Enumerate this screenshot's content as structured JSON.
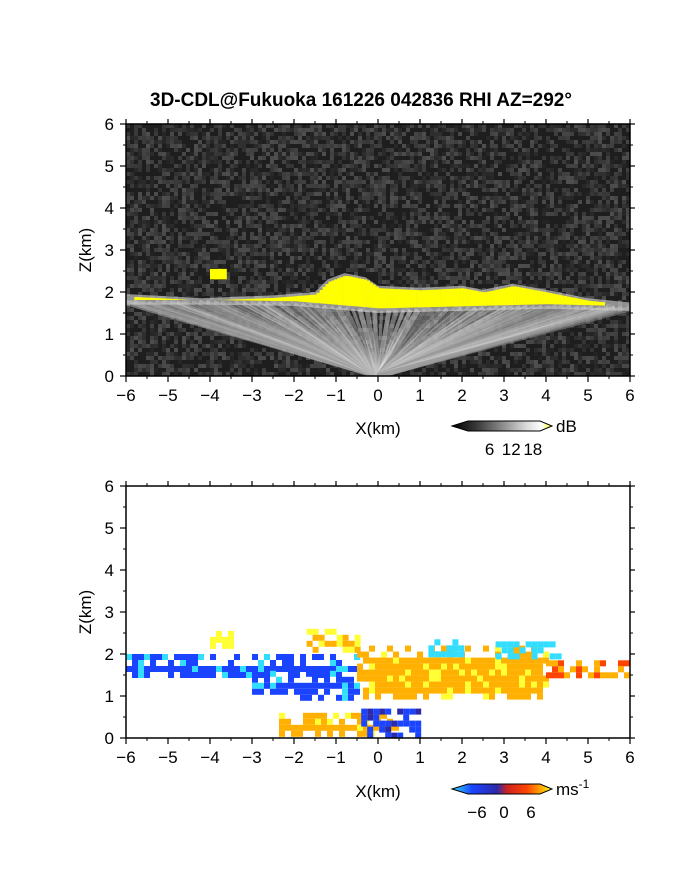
{
  "title": "3D-CDL@Fukuoka 161226 042836 RHI AZ=292°",
  "chart_data": [
    {
      "id": "reflectivity",
      "type": "heatmap",
      "xlabel": "X(km)",
      "ylabel": "Z(km)",
      "xlim": [
        -6,
        6
      ],
      "ylim": [
        0,
        6
      ],
      "xticks": [
        "-6",
        "-5",
        "-4",
        "-3",
        "-2",
        "-1",
        "0",
        "1",
        "2",
        "3",
        "4",
        "5",
        "6"
      ],
      "yticks": [
        "0",
        "1",
        "2",
        "3",
        "4",
        "5",
        "6"
      ],
      "background": "noise",
      "colorbar": {
        "label": "dB",
        "ticks": [
          "6",
          "12",
          "18"
        ],
        "range": [
          0,
          20
        ],
        "colors": [
          "#000000",
          "#3a3a3a",
          "#7a7a7a",
          "#b5b5b5",
          "#e8e8e8",
          "#ffff00"
        ]
      },
      "cloud_top_profile": [
        [
          -6.0,
          1.95
        ],
        [
          -5.0,
          1.9
        ],
        [
          -4.2,
          1.85
        ],
        [
          -3.5,
          1.88
        ],
        [
          -2.5,
          1.92
        ],
        [
          -1.5,
          2.0
        ],
        [
          -1.2,
          2.3
        ],
        [
          -0.8,
          2.45
        ],
        [
          -0.3,
          2.35
        ],
        [
          0.0,
          2.15
        ],
        [
          1.0,
          2.1
        ],
        [
          2.0,
          2.15
        ],
        [
          2.5,
          2.05
        ],
        [
          3.2,
          2.2
        ],
        [
          4.0,
          2.05
        ],
        [
          5.0,
          1.85
        ],
        [
          6.0,
          1.75
        ]
      ],
      "cloud_base_profile": [
        [
          -6.0,
          1.75
        ],
        [
          -4.0,
          1.75
        ],
        [
          -2.0,
          1.72
        ],
        [
          0.0,
          1.55
        ],
        [
          2.0,
          1.6
        ],
        [
          4.0,
          1.65
        ],
        [
          6.0,
          1.6
        ]
      ],
      "elevated_patches": [
        {
          "x": [
            -4.0,
            -3.6
          ],
          "z": [
            2.3,
            2.55
          ],
          "value": 20
        }
      ]
    },
    {
      "id": "doppler_velocity",
      "type": "heatmap",
      "xlabel": "X(km)",
      "ylabel": "Z(km)",
      "xlim": [
        -6,
        6
      ],
      "ylim": [
        0,
        6
      ],
      "xticks": [
        "-6",
        "-5",
        "-4",
        "-3",
        "-2",
        "-1",
        "0",
        "1",
        "2",
        "3",
        "4",
        "5",
        "6"
      ],
      "yticks": [
        "0",
        "1",
        "2",
        "3",
        "4",
        "5",
        "6"
      ],
      "background": "none",
      "colorbar": {
        "label": "ms",
        "exponent": "-1",
        "ticks": [
          "-6",
          "0",
          "6"
        ],
        "range": [
          -8,
          8
        ],
        "colors": [
          "#33ddff",
          "#1a44ff",
          "#2a2aaa",
          "#cc2222",
          "#ff4400",
          "#ffb000",
          "#ffff33"
        ]
      },
      "regions": [
        {
          "x": [
            -6.0,
            -0.5
          ],
          "z": [
            1.45,
            2.0
          ],
          "value": -5
        },
        {
          "x": [
            -3.0,
            -0.3
          ],
          "z": [
            1.0,
            1.6
          ],
          "value": -5
        },
        {
          "x": [
            -0.5,
            4.0
          ],
          "z": [
            1.0,
            2.2
          ],
          "value": 5
        },
        {
          "x": [
            4.0,
            6.0
          ],
          "z": [
            1.55,
            1.85
          ],
          "value": 4
        },
        {
          "x": [
            -1.7,
            -0.5
          ],
          "z": [
            2.1,
            2.6
          ],
          "value": 6
        },
        {
          "x": [
            -4.0,
            -3.5
          ],
          "z": [
            2.2,
            2.55
          ],
          "value": 7
        },
        {
          "x": [
            1.2,
            2.0
          ],
          "z": [
            2.05,
            2.35
          ],
          "value": -7
        },
        {
          "x": [
            2.8,
            4.3
          ],
          "z": [
            2.0,
            2.3
          ],
          "value": -7
        },
        {
          "x": [
            -2.5,
            0.5
          ],
          "z": [
            0.05,
            0.6
          ],
          "value": 5
        },
        {
          "x": [
            -0.4,
            1.0
          ],
          "z": [
            0.1,
            0.7
          ],
          "value": -4
        }
      ]
    }
  ]
}
